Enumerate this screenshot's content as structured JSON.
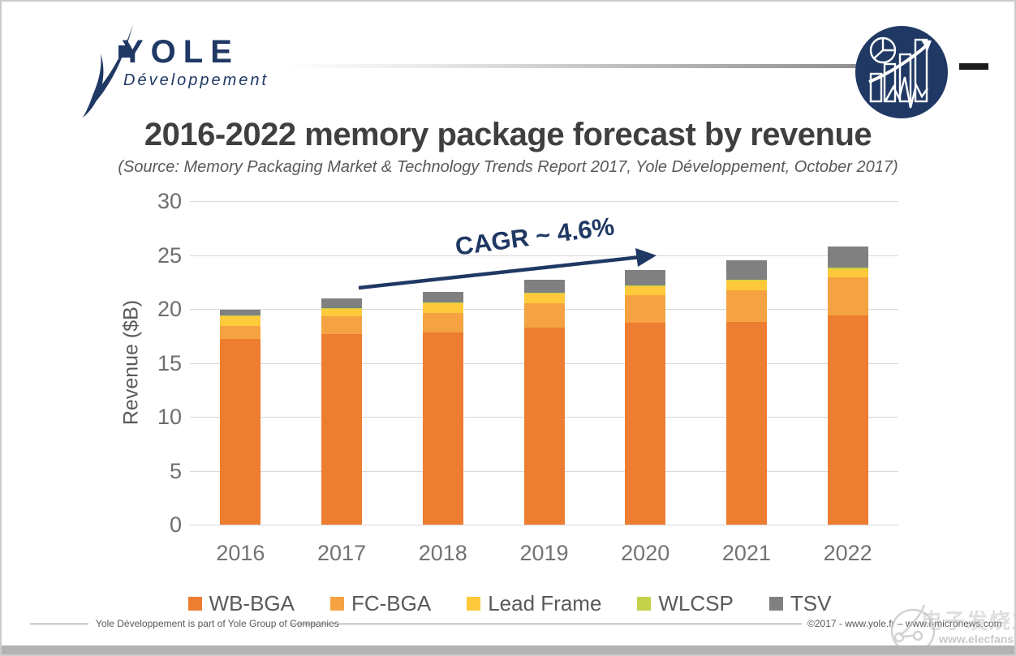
{
  "header": {
    "logo_text": "YOLE",
    "logo_subtext": "Développement",
    "brand_color": "#1F3864"
  },
  "title": "2016-2022 memory package forecast by revenue",
  "subtitle": "(Source: Memory Packaging Market & Technology Trends Report 2017, Yole Développement, October 2017)",
  "chart_data": {
    "type": "bar",
    "stacked": true,
    "title": "2016-2022 memory package forecast by revenue",
    "categories": [
      "2016",
      "2017",
      "2018",
      "2019",
      "2020",
      "2021",
      "2022"
    ],
    "series": [
      {
        "name": "WB-BGA",
        "color": "#ED7D31",
        "values": [
          17.2,
          17.7,
          17.8,
          18.3,
          18.7,
          18.8,
          19.4
        ]
      },
      {
        "name": "FC-BGA",
        "color": "#F5A342",
        "values": [
          1.2,
          1.6,
          1.8,
          2.2,
          2.6,
          2.9,
          3.5
        ]
      },
      {
        "name": "Lead Frame",
        "color": "#FFC93C",
        "values": [
          0.9,
          0.7,
          0.9,
          0.9,
          0.8,
          0.9,
          0.8
        ]
      },
      {
        "name": "WLCSP",
        "color": "#C2D24A",
        "values": [
          0.1,
          0.1,
          0.1,
          0.1,
          0.1,
          0.1,
          0.1
        ]
      },
      {
        "name": "TSV",
        "color": "#808080",
        "values": [
          0.5,
          0.9,
          1.0,
          1.2,
          1.4,
          1.8,
          2.0
        ]
      }
    ],
    "totals": [
      19.9,
      21.0,
      21.6,
      22.7,
      23.6,
      24.5,
      25.8
    ],
    "xlabel": "",
    "ylabel": "Revenue ($B)",
    "ylim": [
      0,
      30
    ],
    "yticks": [
      0,
      5,
      10,
      15,
      20,
      25,
      30
    ],
    "grid": true,
    "legend_position": "bottom",
    "annotation": "CAGR ~ 4.6%"
  },
  "footer": {
    "left_text": "Yole Développement is part of Yole Group of Companies",
    "right_text": "©2017 - www.yole.fr – www.i-micronews.com"
  },
  "watermark": {
    "cn_text": "电子发烧友",
    "url": "www.elecfans.com"
  }
}
